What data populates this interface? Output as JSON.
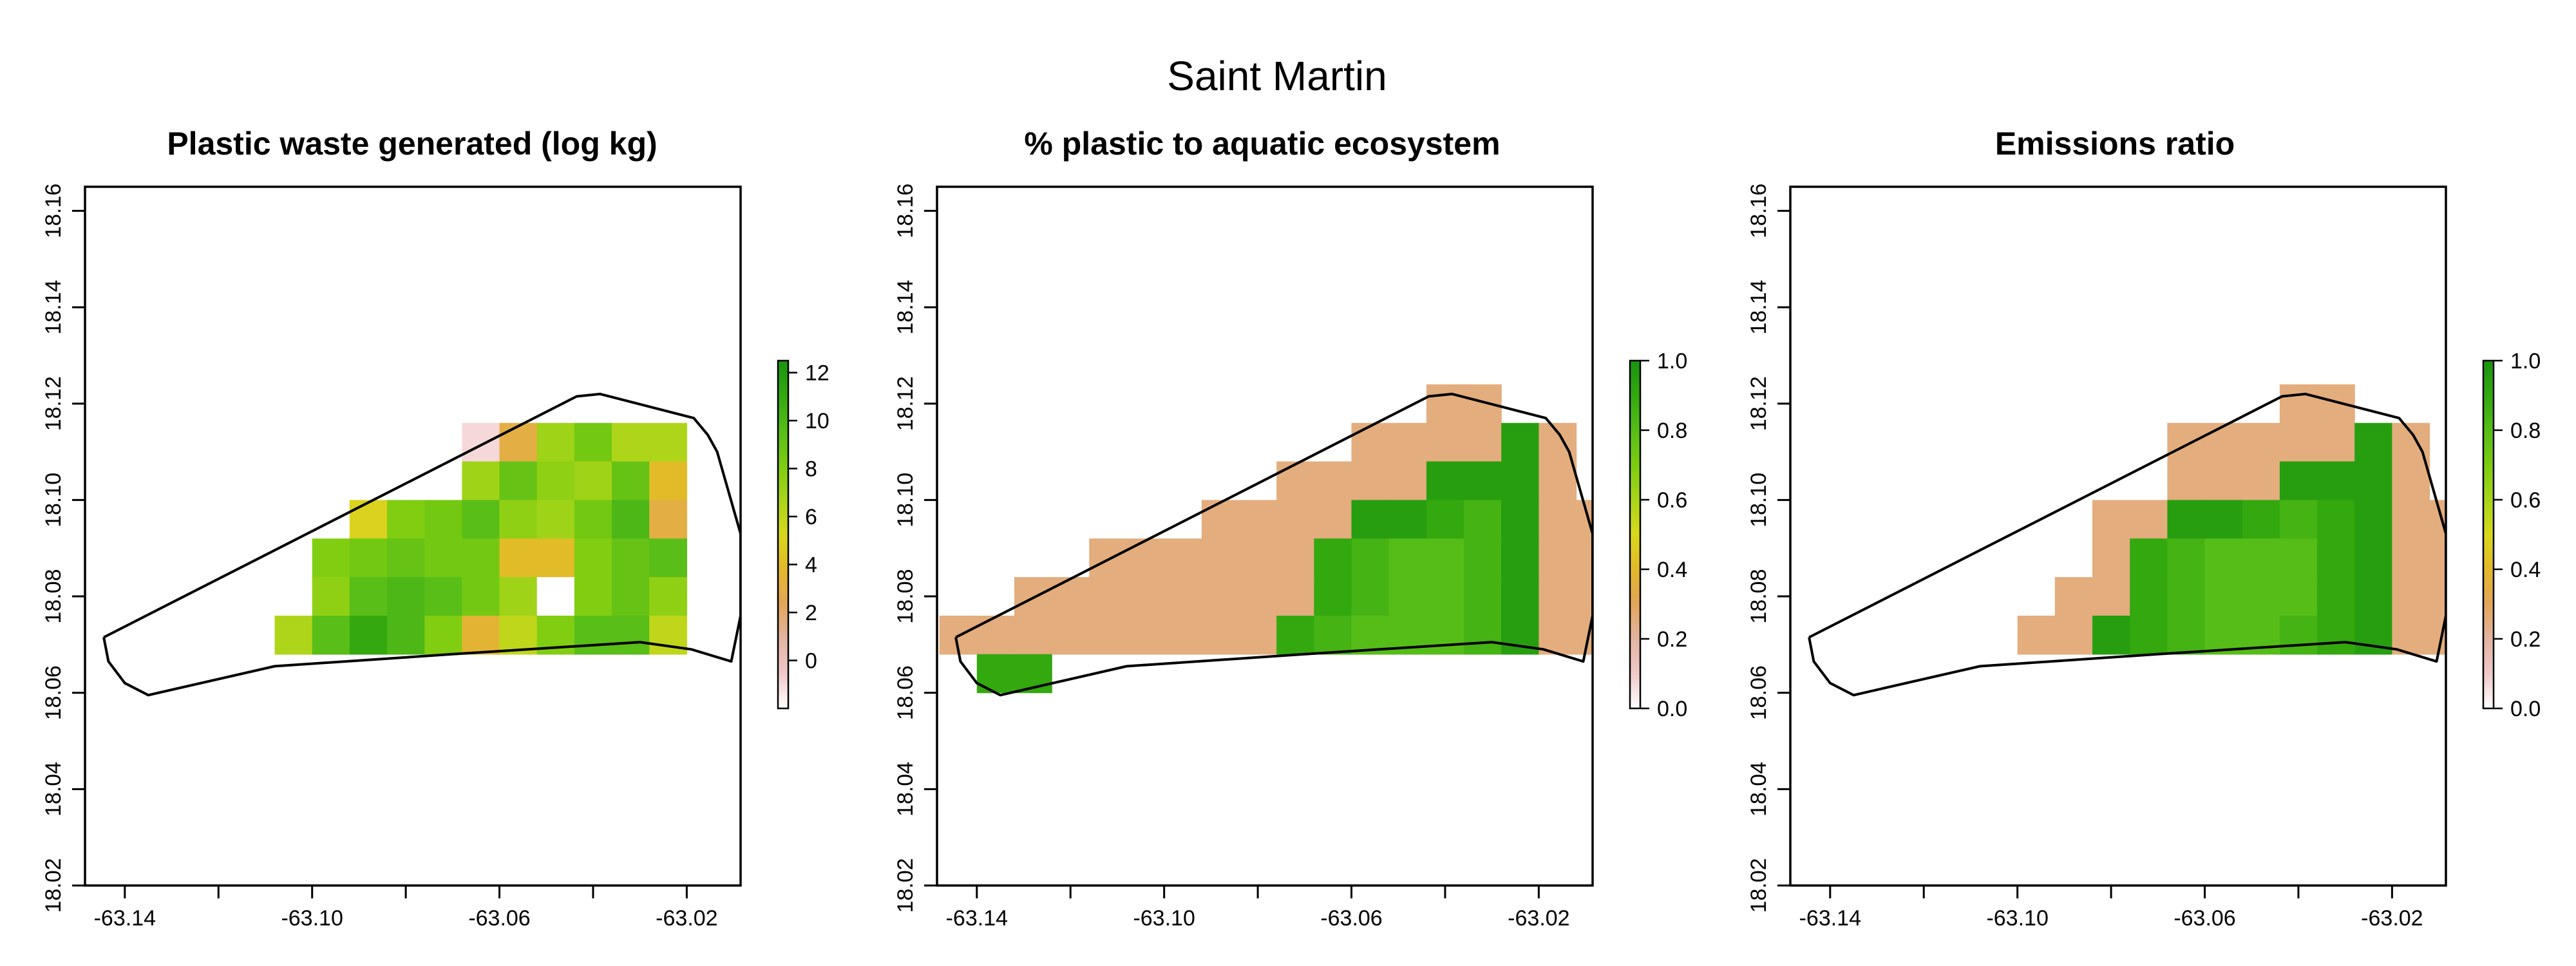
{
  "title": "Saint Martin",
  "colors": {
    "ramp": [
      "#ffffff",
      "#f0c8c8",
      "#e3b4a2",
      "#e3a559",
      "#e3b82a",
      "#d8d81c",
      "#a8d51a",
      "#7ccc10",
      "#56bd18",
      "#33a80f",
      "#1a9410"
    ]
  },
  "chart_data": [
    {
      "type": "heatmap",
      "title": "Plastic waste generated (log kg)",
      "x_ticks": [
        "-63.14",
        "-63.10",
        "-63.06",
        "-63.02"
      ],
      "y_ticks": [
        "18.02",
        "18.04",
        "18.06",
        "18.08",
        "18.10",
        "18.12",
        "18.14",
        "18.16"
      ],
      "xlim": [
        -63.1485,
        -63.0085
      ],
      "ylim": [
        18.02,
        18.165
      ],
      "legend": {
        "position": "right",
        "ticks": [
          "0",
          "2",
          "4",
          "6",
          "8",
          "10",
          "12"
        ],
        "range": [
          -2,
          12.5
        ]
      },
      "cell_size": 0.008,
      "cells": [
        {
          "x": -63.064,
          "y": 18.112,
          "v": -1
        },
        {
          "x": -63.056,
          "y": 18.112,
          "v": 3
        },
        {
          "x": -63.048,
          "y": 18.112,
          "v": 7
        },
        {
          "x": -63.04,
          "y": 18.112,
          "v": 8.5
        },
        {
          "x": -63.032,
          "y": 18.112,
          "v": 6.5
        },
        {
          "x": -63.024,
          "y": 18.112,
          "v": 6.5
        },
        {
          "x": -63.064,
          "y": 18.104,
          "v": 7
        },
        {
          "x": -63.056,
          "y": 18.104,
          "v": 9
        },
        {
          "x": -63.048,
          "y": 18.104,
          "v": 7.5
        },
        {
          "x": -63.04,
          "y": 18.104,
          "v": 7
        },
        {
          "x": -63.032,
          "y": 18.104,
          "v": 9
        },
        {
          "x": -63.024,
          "y": 18.104,
          "v": 4
        },
        {
          "x": -63.088,
          "y": 18.096,
          "v": 5
        },
        {
          "x": -63.08,
          "y": 18.096,
          "v": 8
        },
        {
          "x": -63.072,
          "y": 18.096,
          "v": 8.5
        },
        {
          "x": -63.064,
          "y": 18.096,
          "v": 9.5
        },
        {
          "x": -63.056,
          "y": 18.096,
          "v": 7.5
        },
        {
          "x": -63.048,
          "y": 18.096,
          "v": 7
        },
        {
          "x": -63.04,
          "y": 18.096,
          "v": 8.5
        },
        {
          "x": -63.032,
          "y": 18.096,
          "v": 10
        },
        {
          "x": -63.024,
          "y": 18.096,
          "v": 3
        },
        {
          "x": -63.096,
          "y": 18.088,
          "v": 8
        },
        {
          "x": -63.088,
          "y": 18.088,
          "v": 8.5
        },
        {
          "x": -63.08,
          "y": 18.088,
          "v": 9
        },
        {
          "x": -63.072,
          "y": 18.088,
          "v": 8.5
        },
        {
          "x": -63.064,
          "y": 18.088,
          "v": 8.5
        },
        {
          "x": -63.056,
          "y": 18.088,
          "v": 4
        },
        {
          "x": -63.048,
          "y": 18.088,
          "v": 4
        },
        {
          "x": -63.04,
          "y": 18.088,
          "v": 8
        },
        {
          "x": -63.032,
          "y": 18.088,
          "v": 9
        },
        {
          "x": -63.024,
          "y": 18.088,
          "v": 9.5
        },
        {
          "x": -63.096,
          "y": 18.08,
          "v": 7.5
        },
        {
          "x": -63.088,
          "y": 18.08,
          "v": 9.5
        },
        {
          "x": -63.08,
          "y": 18.08,
          "v": 10
        },
        {
          "x": -63.072,
          "y": 18.08,
          "v": 9.5
        },
        {
          "x": -63.064,
          "y": 18.08,
          "v": 8.5
        },
        {
          "x": -63.056,
          "y": 18.08,
          "v": 7
        },
        {
          "x": -63.048,
          "y": 18.08,
          "v": -2
        },
        {
          "x": -63.04,
          "y": 18.08,
          "v": 8
        },
        {
          "x": -63.032,
          "y": 18.08,
          "v": 9
        },
        {
          "x": -63.024,
          "y": 18.08,
          "v": 7.5
        },
        {
          "x": -63.104,
          "y": 18.072,
          "v": 6.5
        },
        {
          "x": -63.096,
          "y": 18.072,
          "v": 9.5
        },
        {
          "x": -63.088,
          "y": 18.072,
          "v": 11
        },
        {
          "x": -63.08,
          "y": 18.072,
          "v": 10
        },
        {
          "x": -63.072,
          "y": 18.072,
          "v": 8
        },
        {
          "x": -63.064,
          "y": 18.072,
          "v": 3.5
        },
        {
          "x": -63.056,
          "y": 18.072,
          "v": 6
        },
        {
          "x": -63.048,
          "y": 18.072,
          "v": 8
        },
        {
          "x": -63.04,
          "y": 18.072,
          "v": 9.5
        },
        {
          "x": -63.032,
          "y": 18.072,
          "v": 9.5
        },
        {
          "x": -63.024,
          "y": 18.072,
          "v": 6
        }
      ]
    },
    {
      "type": "heatmap",
      "title": "% plastic to aquatic ecosystem",
      "x_ticks": [
        "-63.14",
        "-63.10",
        "-63.06",
        "-63.02"
      ],
      "y_ticks": [
        "18.02",
        "18.04",
        "18.06",
        "18.08",
        "18.10",
        "18.12",
        "18.14",
        "18.16"
      ],
      "xlim": [
        -63.1485,
        -63.0085
      ],
      "ylim": [
        18.02,
        18.165
      ],
      "legend": {
        "position": "right",
        "ticks": [
          "0.0",
          "0.2",
          "0.4",
          "0.6",
          "0.8",
          "1.0"
        ],
        "range": [
          0,
          1
        ]
      },
      "cell_size": 0.008,
      "cells": [
        {
          "x": -63.04,
          "y": 18.12,
          "v": 0.25
        },
        {
          "x": -63.032,
          "y": 18.12,
          "v": 0.25
        },
        {
          "x": -63.056,
          "y": 18.112,
          "v": 0.25
        },
        {
          "x": -63.048,
          "y": 18.112,
          "v": 0.25
        },
        {
          "x": -63.04,
          "y": 18.112,
          "v": 0.25
        },
        {
          "x": -63.032,
          "y": 18.112,
          "v": 0.25
        },
        {
          "x": -63.024,
          "y": 18.112,
          "v": 0.95
        },
        {
          "x": -63.016,
          "y": 18.112,
          "v": 0.25
        },
        {
          "x": -63.072,
          "y": 18.104,
          "v": 0.25
        },
        {
          "x": -63.064,
          "y": 18.104,
          "v": 0.25
        },
        {
          "x": -63.056,
          "y": 18.104,
          "v": 0.25
        },
        {
          "x": -63.048,
          "y": 18.104,
          "v": 0.25
        },
        {
          "x": -63.04,
          "y": 18.104,
          "v": 0.95
        },
        {
          "x": -63.032,
          "y": 18.104,
          "v": 0.95
        },
        {
          "x": -63.024,
          "y": 18.104,
          "v": 0.95
        },
        {
          "x": -63.016,
          "y": 18.104,
          "v": 0.25
        },
        {
          "x": -63.088,
          "y": 18.096,
          "v": 0.25
        },
        {
          "x": -63.08,
          "y": 18.096,
          "v": 0.25
        },
        {
          "x": -63.072,
          "y": 18.096,
          "v": 0.25
        },
        {
          "x": -63.064,
          "y": 18.096,
          "v": 0.25
        },
        {
          "x": -63.056,
          "y": 18.096,
          "v": 0.95
        },
        {
          "x": -63.048,
          "y": 18.096,
          "v": 0.95
        },
        {
          "x": -63.04,
          "y": 18.096,
          "v": 0.9
        },
        {
          "x": -63.032,
          "y": 18.096,
          "v": 0.85
        },
        {
          "x": -63.024,
          "y": 18.096,
          "v": 0.95
        },
        {
          "x": -63.016,
          "y": 18.096,
          "v": 0.25
        },
        {
          "x": -63.008,
          "y": 18.096,
          "v": 0.25
        },
        {
          "x": -63.112,
          "y": 18.088,
          "v": 0.25
        },
        {
          "x": -63.104,
          "y": 18.088,
          "v": 0.25
        },
        {
          "x": -63.096,
          "y": 18.088,
          "v": 0.25
        },
        {
          "x": -63.088,
          "y": 18.088,
          "v": 0.25
        },
        {
          "x": -63.08,
          "y": 18.088,
          "v": 0.25
        },
        {
          "x": -63.072,
          "y": 18.088,
          "v": 0.25
        },
        {
          "x": -63.064,
          "y": 18.088,
          "v": 0.9
        },
        {
          "x": -63.056,
          "y": 18.088,
          "v": 0.85
        },
        {
          "x": -63.048,
          "y": 18.088,
          "v": 0.8
        },
        {
          "x": -63.04,
          "y": 18.088,
          "v": 0.8
        },
        {
          "x": -63.032,
          "y": 18.088,
          "v": 0.85
        },
        {
          "x": -63.024,
          "y": 18.088,
          "v": 0.95
        },
        {
          "x": -63.016,
          "y": 18.088,
          "v": 0.25
        },
        {
          "x": -63.008,
          "y": 18.088,
          "v": 0.25
        },
        {
          "x": -63.128,
          "y": 18.08,
          "v": 0.25
        },
        {
          "x": -63.12,
          "y": 18.08,
          "v": 0.25
        },
        {
          "x": -63.112,
          "y": 18.08,
          "v": 0.25
        },
        {
          "x": -63.104,
          "y": 18.08,
          "v": 0.25
        },
        {
          "x": -63.096,
          "y": 18.08,
          "v": 0.25
        },
        {
          "x": -63.088,
          "y": 18.08,
          "v": 0.25
        },
        {
          "x": -63.08,
          "y": 18.08,
          "v": 0.25
        },
        {
          "x": -63.072,
          "y": 18.08,
          "v": 0.25
        },
        {
          "x": -63.064,
          "y": 18.08,
          "v": 0.9
        },
        {
          "x": -63.056,
          "y": 18.08,
          "v": 0.85
        },
        {
          "x": -63.048,
          "y": 18.08,
          "v": 0.8
        },
        {
          "x": -63.04,
          "y": 18.08,
          "v": 0.8
        },
        {
          "x": -63.032,
          "y": 18.08,
          "v": 0.85
        },
        {
          "x": -63.024,
          "y": 18.08,
          "v": 0.95
        },
        {
          "x": -63.016,
          "y": 18.08,
          "v": 0.25
        },
        {
          "x": -63.008,
          "y": 18.08,
          "v": 0.25
        },
        {
          "x": -63.144,
          "y": 18.072,
          "v": 0.25
        },
        {
          "x": -63.136,
          "y": 18.072,
          "v": 0.25
        },
        {
          "x": -63.128,
          "y": 18.072,
          "v": 0.25
        },
        {
          "x": -63.12,
          "y": 18.072,
          "v": 0.25
        },
        {
          "x": -63.112,
          "y": 18.072,
          "v": 0.25
        },
        {
          "x": -63.104,
          "y": 18.072,
          "v": 0.25
        },
        {
          "x": -63.096,
          "y": 18.072,
          "v": 0.25
        },
        {
          "x": -63.088,
          "y": 18.072,
          "v": 0.25
        },
        {
          "x": -63.08,
          "y": 18.072,
          "v": 0.25
        },
        {
          "x": -63.072,
          "y": 18.072,
          "v": 0.9
        },
        {
          "x": -63.064,
          "y": 18.072,
          "v": 0.85
        },
        {
          "x": -63.056,
          "y": 18.072,
          "v": 0.8
        },
        {
          "x": -63.048,
          "y": 18.072,
          "v": 0.8
        },
        {
          "x": -63.04,
          "y": 18.072,
          "v": 0.8
        },
        {
          "x": -63.032,
          "y": 18.072,
          "v": 0.85
        },
        {
          "x": -63.024,
          "y": 18.072,
          "v": 0.95
        },
        {
          "x": -63.016,
          "y": 18.072,
          "v": 0.25
        },
        {
          "x": -63.008,
          "y": 18.072,
          "v": 0.25
        },
        {
          "x": -63.136,
          "y": 18.064,
          "v": 0.9
        },
        {
          "x": -63.128,
          "y": 18.064,
          "v": 0.9
        }
      ]
    },
    {
      "type": "heatmap",
      "title": "Emissions ratio",
      "x_ticks": [
        "-63.14",
        "-63.10",
        "-63.06",
        "-63.02"
      ],
      "y_ticks": [
        "18.02",
        "18.04",
        "18.06",
        "18.08",
        "18.10",
        "18.12",
        "18.14",
        "18.16"
      ],
      "xlim": [
        -63.1485,
        -63.0085
      ],
      "ylim": [
        18.02,
        18.165
      ],
      "legend": {
        "position": "right",
        "ticks": [
          "0.0",
          "0.2",
          "0.4",
          "0.6",
          "0.8",
          "1.0"
        ],
        "range": [
          0,
          1
        ]
      },
      "cell_size": 0.008,
      "cells": [
        {
          "x": -63.04,
          "y": 18.12,
          "v": 0.25
        },
        {
          "x": -63.032,
          "y": 18.12,
          "v": 0.25
        },
        {
          "x": -63.064,
          "y": 18.112,
          "v": 0.25
        },
        {
          "x": -63.056,
          "y": 18.112,
          "v": 0.25
        },
        {
          "x": -63.048,
          "y": 18.112,
          "v": 0.25
        },
        {
          "x": -63.04,
          "y": 18.112,
          "v": 0.25
        },
        {
          "x": -63.032,
          "y": 18.112,
          "v": 0.25
        },
        {
          "x": -63.024,
          "y": 18.112,
          "v": 0.95
        },
        {
          "x": -63.016,
          "y": 18.112,
          "v": 0.25
        },
        {
          "x": -63.064,
          "y": 18.104,
          "v": 0.25
        },
        {
          "x": -63.056,
          "y": 18.104,
          "v": 0.25
        },
        {
          "x": -63.048,
          "y": 18.104,
          "v": 0.25
        },
        {
          "x": -63.04,
          "y": 18.104,
          "v": 0.95
        },
        {
          "x": -63.032,
          "y": 18.104,
          "v": 0.95
        },
        {
          "x": -63.024,
          "y": 18.104,
          "v": 0.95
        },
        {
          "x": -63.016,
          "y": 18.104,
          "v": 0.25
        },
        {
          "x": -63.08,
          "y": 18.096,
          "v": 0.25
        },
        {
          "x": -63.072,
          "y": 18.096,
          "v": 0.25
        },
        {
          "x": -63.064,
          "y": 18.096,
          "v": 0.95
        },
        {
          "x": -63.056,
          "y": 18.096,
          "v": 0.95
        },
        {
          "x": -63.048,
          "y": 18.096,
          "v": 0.9
        },
        {
          "x": -63.04,
          "y": 18.096,
          "v": 0.85
        },
        {
          "x": -63.032,
          "y": 18.096,
          "v": 0.9
        },
        {
          "x": -63.024,
          "y": 18.096,
          "v": 0.95
        },
        {
          "x": -63.016,
          "y": 18.096,
          "v": 0.25
        },
        {
          "x": -63.008,
          "y": 18.096,
          "v": 0.25
        },
        {
          "x": -63.08,
          "y": 18.088,
          "v": 0.25
        },
        {
          "x": -63.072,
          "y": 18.088,
          "v": 0.9
        },
        {
          "x": -63.064,
          "y": 18.088,
          "v": 0.85
        },
        {
          "x": -63.056,
          "y": 18.088,
          "v": 0.8
        },
        {
          "x": -63.048,
          "y": 18.088,
          "v": 0.8
        },
        {
          "x": -63.04,
          "y": 18.088,
          "v": 0.8
        },
        {
          "x": -63.032,
          "y": 18.088,
          "v": 0.9
        },
        {
          "x": -63.024,
          "y": 18.088,
          "v": 0.95
        },
        {
          "x": -63.016,
          "y": 18.088,
          "v": 0.25
        },
        {
          "x": -63.008,
          "y": 18.088,
          "v": 0.25
        },
        {
          "x": -63.088,
          "y": 18.08,
          "v": 0.25
        },
        {
          "x": -63.08,
          "y": 18.08,
          "v": 0.25
        },
        {
          "x": -63.072,
          "y": 18.08,
          "v": 0.9
        },
        {
          "x": -63.064,
          "y": 18.08,
          "v": 0.85
        },
        {
          "x": -63.056,
          "y": 18.08,
          "v": 0.8
        },
        {
          "x": -63.048,
          "y": 18.08,
          "v": 0.8
        },
        {
          "x": -63.04,
          "y": 18.08,
          "v": 0.8
        },
        {
          "x": -63.032,
          "y": 18.08,
          "v": 0.9
        },
        {
          "x": -63.024,
          "y": 18.08,
          "v": 0.95
        },
        {
          "x": -63.016,
          "y": 18.08,
          "v": 0.25
        },
        {
          "x": -63.008,
          "y": 18.08,
          "v": 0.25
        },
        {
          "x": -63.096,
          "y": 18.072,
          "v": 0.25
        },
        {
          "x": -63.088,
          "y": 18.072,
          "v": 0.25
        },
        {
          "x": -63.08,
          "y": 18.072,
          "v": 0.95
        },
        {
          "x": -63.072,
          "y": 18.072,
          "v": 0.9
        },
        {
          "x": -63.064,
          "y": 18.072,
          "v": 0.85
        },
        {
          "x": -63.056,
          "y": 18.072,
          "v": 0.8
        },
        {
          "x": -63.048,
          "y": 18.072,
          "v": 0.8
        },
        {
          "x": -63.04,
          "y": 18.072,
          "v": 0.85
        },
        {
          "x": -63.032,
          "y": 18.072,
          "v": 0.9
        },
        {
          "x": -63.024,
          "y": 18.072,
          "v": 0.95
        },
        {
          "x": -63.016,
          "y": 18.072,
          "v": 0.25
        },
        {
          "x": -63.008,
          "y": 18.072,
          "v": 0.25
        }
      ]
    }
  ],
  "boundary": [
    [
      -63.1445,
      18.0715
    ],
    [
      -63.1435,
      18.0665
    ],
    [
      -63.14,
      18.062
    ],
    [
      -63.135,
      18.0595
    ],
    [
      -63.108,
      18.0655
    ],
    [
      -63.07,
      18.068
    ],
    [
      -63.03,
      18.0705
    ],
    [
      -63.019,
      18.069
    ],
    [
      -63.0105,
      18.0665
    ],
    [
      -63.0085,
      18.076
    ],
    [
      -63.0085,
      18.093
    ],
    [
      -63.0135,
      18.11
    ],
    [
      -63.0155,
      18.1135
    ],
    [
      -63.0185,
      18.117
    ],
    [
      -63.0385,
      18.122
    ],
    [
      -63.0435,
      18.1215
    ],
    [
      -63.1445,
      18.0715
    ]
  ]
}
